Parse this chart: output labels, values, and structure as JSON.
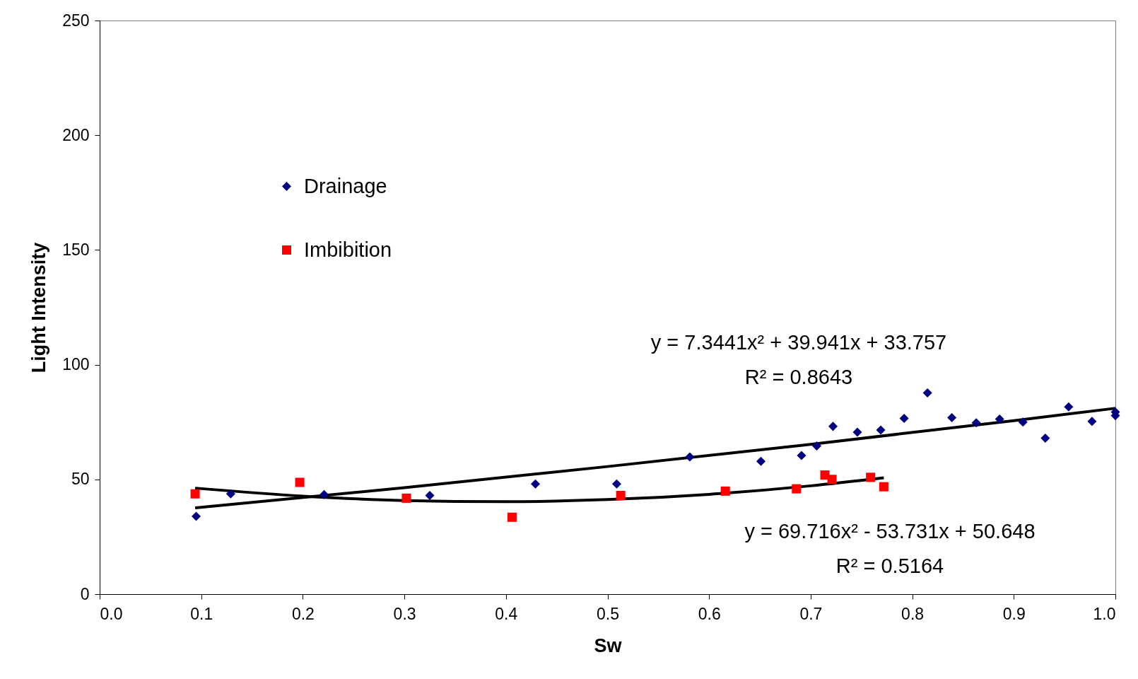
{
  "chart_data": {
    "type": "scatter",
    "xlabel": "Sw",
    "ylabel": "Light Intensity",
    "xlim": [
      0,
      1
    ],
    "xticks": [
      {
        "value": 0,
        "label": "0.0"
      },
      0.1,
      0.2,
      0.3,
      0.4,
      0.5,
      0.6,
      0.7,
      0.8,
      0.9,
      {
        "value": 1,
        "label": "1.0"
      }
    ],
    "ylim": [
      0,
      250
    ],
    "yticks": [
      0,
      50,
      100,
      150,
      200,
      250
    ],
    "grid": false,
    "legend": "top left",
    "annotations": [
      "y = 7.3441x² + 39.941x + 33.757",
      "R² = 0.8643",
      "y = 69.716x² - 53.731x + 50.648",
      "R² = 0.5164"
    ],
    "series": [
      {
        "name": "Drainage",
        "marker": "diamond",
        "color": "#000080",
        "x": [
          0.095,
          0.129,
          0.221,
          0.325,
          0.429,
          0.509,
          0.581,
          0.651,
          0.691,
          0.706,
          0.722,
          0.746,
          0.769,
          0.792,
          0.815,
          0.839,
          0.863,
          0.886,
          0.909,
          0.931,
          0.954,
          0.977,
          1.0,
          1.0
        ],
        "values": [
          33.9,
          43.7,
          43.4,
          43,
          48,
          48,
          59.8,
          57.9,
          60.4,
          64.6,
          73.1,
          70.6,
          71.5,
          76.6,
          87.7,
          76.9,
          74.7,
          76.3,
          75,
          68,
          81.6,
          75.3,
          79.4,
          77.8
        ]
      },
      {
        "name": "Imbibition",
        "marker": "square",
        "color": "#ff0000",
        "x": [
          0.094,
          0.197,
          0.302,
          0.406,
          0.513,
          0.616,
          0.686,
          0.714,
          0.721,
          0.759,
          0.772
        ],
        "values": [
          43.7,
          48.7,
          41.8,
          33.5,
          43,
          44.9,
          45.9,
          51.9,
          50,
          50.9,
          46.8
        ]
      },
      {
        "type": "line",
        "marker": "none",
        "color": "#000000",
        "x": [
          0.094,
          0.3,
          0.5,
          0.7,
          0.9,
          1.0
        ],
        "values": [
          37.6,
          46.4,
          55.6,
          65.3,
          75.6,
          81.0
        ]
      },
      {
        "type": "line",
        "marker": "none",
        "color": "#000000",
        "x": [
          0.094,
          0.2,
          0.3,
          0.4,
          0.5,
          0.6,
          0.7,
          0.772
        ],
        "values": [
          46.2,
          42.7,
          40.8,
          40.3,
          41.2,
          43.5,
          47.2,
          50.7
        ]
      }
    ]
  }
}
